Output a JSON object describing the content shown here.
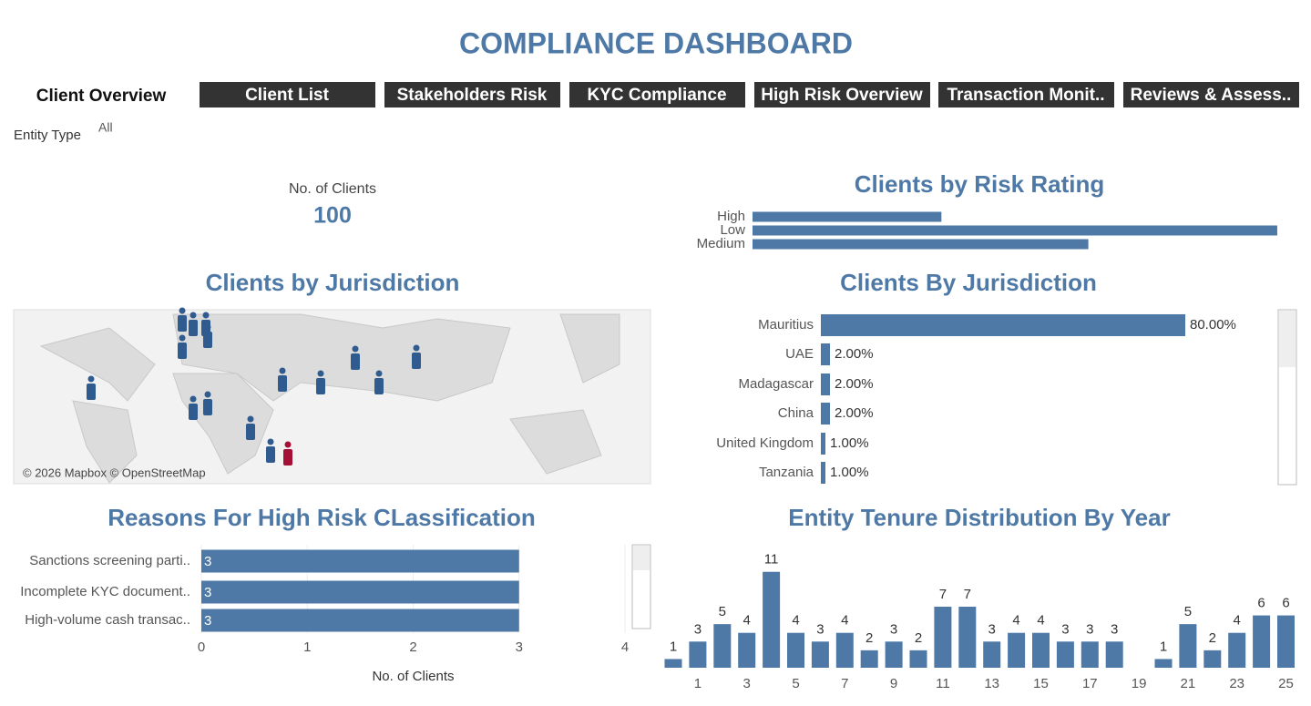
{
  "header": {
    "title": "COMPLIANCE DASHBOARD"
  },
  "nav": {
    "active": "Client Overview",
    "tabs": [
      "Client List",
      "Stakeholders Risk",
      "KYC Compliance",
      "High Risk Overview",
      "Transaction Monit..",
      "Reviews & Assess.."
    ]
  },
  "filter": {
    "label": "Entity Type",
    "value": "All"
  },
  "kpi": {
    "label": "No. of Clients",
    "value": 100
  },
  "map": {
    "title": "Clients by Jurisdiction",
    "attribution": "© 2026 Mapbox © OpenStreetMap"
  },
  "chart_data": [
    {
      "type": "hbar",
      "title": "Clients by Risk Rating",
      "categories": [
        "High",
        "Low",
        "Medium"
      ],
      "values": [
        18,
        50,
        32
      ],
      "color": "#4e79a7",
      "xlim": [
        0,
        52
      ]
    },
    {
      "type": "hbar",
      "title": "Clients By Jurisdiction",
      "categories": [
        "Mauritius",
        "UAE",
        "Madagascar",
        "China",
        "United Kingdom",
        "Tanzania"
      ],
      "values": [
        80,
        2,
        2,
        2,
        1,
        1
      ],
      "value_labels": [
        "80.00%",
        "2.00%",
        "2.00%",
        "2.00%",
        "1.00%",
        "1.00%"
      ],
      "color": "#4e79a7",
      "xlim": [
        0,
        100
      ]
    },
    {
      "type": "hbar",
      "title": "Reasons For High Risk CLassification",
      "categories": [
        "Sanctions screening parti..",
        "Incomplete KYC document..",
        "High-volume cash transac.."
      ],
      "values": [
        3,
        3,
        3
      ],
      "color": "#4e79a7",
      "xlim": [
        0,
        4
      ],
      "xticks": [
        0,
        1,
        2,
        3,
        4
      ],
      "xlabel": "No. of Clients",
      "grid": true
    },
    {
      "type": "bar",
      "title": "Entity Tenure Distribution By Year",
      "categories": [
        null,
        1,
        null,
        3,
        null,
        5,
        null,
        7,
        null,
        9,
        null,
        11,
        null,
        13,
        null,
        15,
        null,
        17,
        null,
        19,
        null,
        21,
        null,
        23,
        null,
        25
      ],
      "values": [
        1,
        3,
        5,
        4,
        11,
        4,
        3,
        4,
        2,
        3,
        2,
        7,
        7,
        3,
        4,
        4,
        3,
        3,
        3,
        null,
        1,
        5,
        2,
        4,
        6,
        6
      ],
      "color": "#4e79a7",
      "ylim": [
        0,
        14
      ]
    }
  ]
}
